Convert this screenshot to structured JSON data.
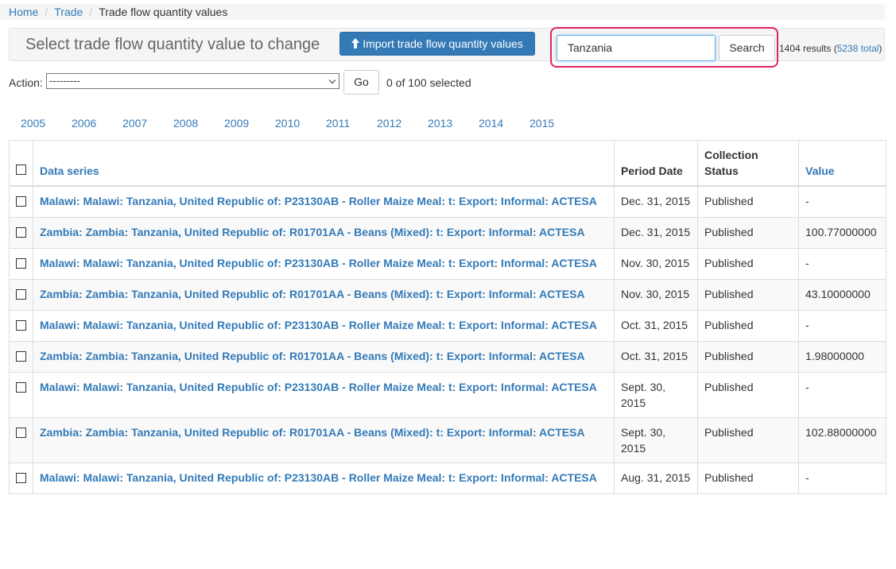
{
  "breadcrumb": [
    "Home",
    "Trade",
    "Trade flow quantity values"
  ],
  "header": {
    "title": "Select trade flow quantity value to change",
    "import_button": "Import trade flow quantity values"
  },
  "search": {
    "query": "Tanzania",
    "button": "Search",
    "results": "1404 results (",
    "total": "5238 total",
    "results_end": ")"
  },
  "actions": {
    "label": "Action:",
    "select": "---------",
    "go": "Go",
    "selected": "0 of 100 selected"
  },
  "years": [
    "2005",
    "2006",
    "2007",
    "2008",
    "2009",
    "2010",
    "2011",
    "2012",
    "2013",
    "2014",
    "2015"
  ],
  "table": {
    "columns": [
      "Data series",
      "Period Date",
      "Collection Status",
      "Value"
    ],
    "rows": [
      [
        "Malawi: Malawi: Tanzania, United Republic of: P23130AB - Roller Maize Meal: t: Export: Informal: ACTESA",
        "Dec. 31, 2015",
        "Published",
        "-"
      ],
      [
        "Zambia: Zambia: Tanzania, United Republic of: R01701AA - Beans (Mixed): t: Export: Informal: ACTESA",
        "Dec. 31, 2015",
        "Published",
        "100.77000000"
      ],
      [
        "Malawi: Malawi: Tanzania, United Republic of: P23130AB - Roller Maize Meal: t: Export: Informal: ACTESA",
        "Nov. 30, 2015",
        "Published",
        "-"
      ],
      [
        "Zambia: Zambia: Tanzania, United Republic of: R01701AA - Beans (Mixed): t: Export: Informal: ACTESA",
        "Nov. 30, 2015",
        "Published",
        "43.10000000"
      ],
      [
        "Malawi: Malawi: Tanzania, United Republic of: P23130AB - Roller Maize Meal: t: Export: Informal: ACTESA",
        "Oct. 31, 2015",
        "Published",
        "-"
      ],
      [
        "Zambia: Zambia: Tanzania, United Republic of: R01701AA - Beans (Mixed): t: Export: Informal: ACTESA",
        "Oct. 31, 2015",
        "Published",
        "1.98000000"
      ],
      [
        "Malawi: Malawi: Tanzania, United Republic of: P23130AB - Roller Maize Meal: t: Export: Informal: ACTESA",
        "Sept. 30, 2015",
        "Published",
        "-"
      ],
      [
        "Zambia: Zambia: Tanzania, United Republic of: R01701AA - Beans (Mixed): t: Export: Informal: ACTESA",
        "Sept. 30, 2015",
        "Published",
        "102.88000000"
      ],
      [
        "Malawi: Malawi: Tanzania, United Republic of: P23130AB - Roller Maize Meal: t: Export: Informal: ACTESA",
        "Aug. 31, 2015",
        "Published",
        "-"
      ]
    ]
  }
}
